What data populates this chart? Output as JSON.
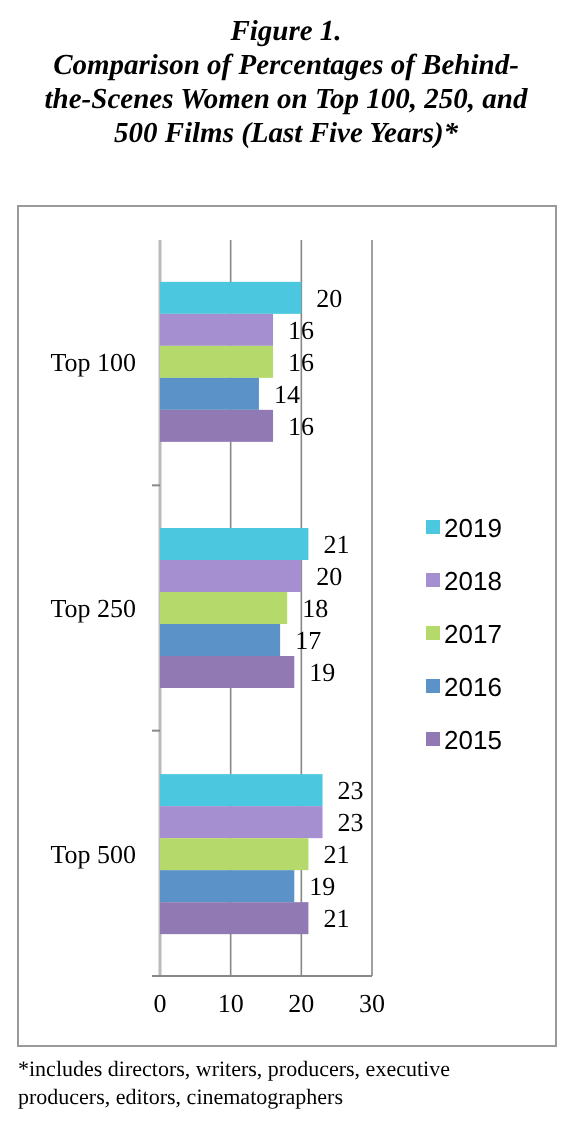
{
  "chart_data": {
    "type": "bar",
    "orientation": "horizontal",
    "title": "Figure 1.",
    "subtitle": "Comparison of Percentages of Behind-the-Scenes Women on Top 100, 250, and 500 Films (Last Five Years)*",
    "categories": [
      "Top 100",
      "Top 250",
      "Top 500"
    ],
    "series": [
      {
        "name": "2019",
        "color": "#4bc8e0",
        "values": [
          20,
          21,
          23
        ]
      },
      {
        "name": "2018",
        "color": "#a58fd0",
        "values": [
          16,
          20,
          23
        ]
      },
      {
        "name": "2017",
        "color": "#b5d96a",
        "values": [
          16,
          18,
          21
        ]
      },
      {
        "name": "2016",
        "color": "#5b93c8",
        "values": [
          14,
          17,
          19
        ]
      },
      {
        "name": "2015",
        "color": "#917ab4",
        "values": [
          16,
          19,
          21
        ]
      }
    ],
    "xlim": [
      0,
      30
    ],
    "xticks": [
      0,
      10,
      20,
      30
    ],
    "grid": "x",
    "legend": "right",
    "data_labels": true,
    "annotations": [
      "*includes directors, writers, producers, executive producers, editors, cinematographers"
    ]
  }
}
